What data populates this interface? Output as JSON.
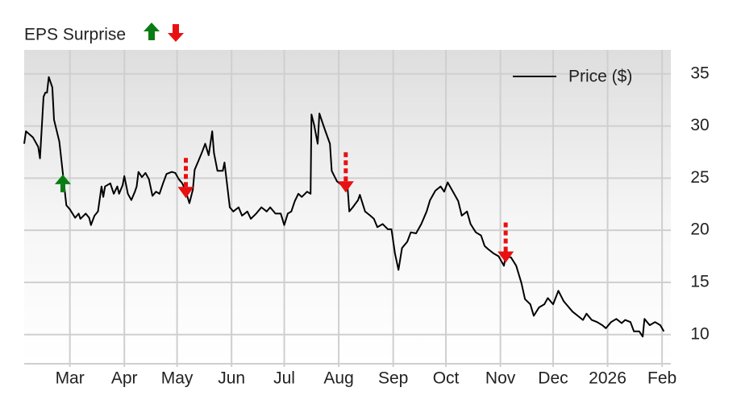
{
  "chart_data": {
    "type": "line",
    "title": "EPS Surprise",
    "x": [
      0,
      1,
      5,
      8,
      9,
      11,
      12,
      13,
      14,
      16,
      17,
      20,
      22,
      24,
      26,
      29,
      31,
      32,
      35,
      37,
      38,
      40,
      42,
      44,
      45,
      46,
      49,
      51,
      53,
      54,
      56,
      57,
      59,
      61,
      63,
      64,
      65,
      67,
      69,
      71,
      73,
      75,
      77,
      79,
      81,
      84,
      86,
      88,
      90,
      92,
      94,
      96,
      97,
      99,
      101,
      103,
      105,
      107,
      108,
      110,
      113,
      114,
      117,
      119,
      122,
      124,
      127,
      129,
      132,
      135,
      138,
      140,
      143,
      146,
      148,
      150,
      152,
      154,
      156,
      158,
      161,
      163,
      163.5,
      165,
      167,
      168,
      171,
      174,
      175,
      178,
      181,
      184,
      185,
      187,
      190,
      191,
      194,
      197,
      199,
      201,
      204,
      207,
      209,
      211,
      213,
      215,
      218,
      220,
      223,
      226,
      229,
      231,
      234,
      237,
      239,
      241,
      244,
      247,
      249,
      252,
      254,
      257,
      260,
      262,
      264,
      267,
      270,
      273,
      274,
      277,
      280,
      283,
      285,
      288,
      290,
      293,
      296,
      298,
      301,
      304,
      307,
      309,
      312,
      315,
      318,
      320,
      323,
      326,
      329,
      331,
      334,
      337,
      340,
      342,
      345,
      347,
      350,
      352,
      353,
      356,
      359,
      362,
      364
    ],
    "series": [
      {
        "name": "Price ($)",
        "color": "#000000",
        "values": [
          28.3,
          29.5,
          28.9,
          28.0,
          26.9,
          32.8,
          33.2,
          33.2,
          34.7,
          33.7,
          30.6,
          28.5,
          25.5,
          22.4,
          22.0,
          21.2,
          21.6,
          21.1,
          21.6,
          21.2,
          20.5,
          21.4,
          21.8,
          24.2,
          23.2,
          24.2,
          24.5,
          23.5,
          24.2,
          23.5,
          24.3,
          25.2,
          23.5,
          22.9,
          23.7,
          24.2,
          25.6,
          25.1,
          25.5,
          24.9,
          23.3,
          23.7,
          23.5,
          24.5,
          25.4,
          25.6,
          25.5,
          24.9,
          24.5,
          23.7,
          22.6,
          23.9,
          25.8,
          26.6,
          27.4,
          28.3,
          27.2,
          29.5,
          27.4,
          25.7,
          25.7,
          26.5,
          22.2,
          21.8,
          22.2,
          21.4,
          21.8,
          21.1,
          21.6,
          22.2,
          21.8,
          22.2,
          21.6,
          21.6,
          20.5,
          21.6,
          21.8,
          22.8,
          23.5,
          23.2,
          23.7,
          23.5,
          31.1,
          30.1,
          28.3,
          31.2,
          29.7,
          28.3,
          25.7,
          24.7,
          24.3,
          24.2,
          21.8,
          22.2,
          22.9,
          23.4,
          21.8,
          21.4,
          21.1,
          20.3,
          20.6,
          20.1,
          20.1,
          17.8,
          16.2,
          18.3,
          18.9,
          19.8,
          19.7,
          20.6,
          21.8,
          22.9,
          23.8,
          24.2,
          23.7,
          24.6,
          23.7,
          22.8,
          21.4,
          21.8,
          20.6,
          19.8,
          19.5,
          18.5,
          18.2,
          17.8,
          17.5,
          16.6,
          17.5,
          17.4,
          16.6,
          14.9,
          13.4,
          12.9,
          11.8,
          12.6,
          12.9,
          13.5,
          12.9,
          14.2,
          13.2,
          12.8,
          12.2,
          11.8,
          11.4,
          12.0,
          11.4,
          11.2,
          10.9,
          10.6,
          11.2,
          11.5,
          11.1,
          11.4,
          11.2,
          10.3,
          10.3,
          9.8,
          11.5,
          10.9,
          11.2,
          10.9,
          10.3
        ]
      }
    ],
    "xlim": [
      0,
      368
    ],
    "xticks": [
      {
        "value": 26,
        "label": "Mar"
      },
      {
        "value": 57,
        "label": "Apr"
      },
      {
        "value": 87,
        "label": "May"
      },
      {
        "value": 118,
        "label": "Jun"
      },
      {
        "value": 148,
        "label": "Jul"
      },
      {
        "value": 179,
        "label": "Aug"
      },
      {
        "value": 210,
        "label": "Sep"
      },
      {
        "value": 240,
        "label": "Oct"
      },
      {
        "value": 271,
        "label": "Nov"
      },
      {
        "value": 301,
        "label": "Dec"
      },
      {
        "value": 332,
        "label": "2026"
      },
      {
        "value": 363,
        "label": "Feb"
      }
    ],
    "ylim": [
      7.2,
      37.3
    ],
    "yticks": [
      10,
      15,
      20,
      25,
      30,
      35
    ],
    "grid": true,
    "legend": "upper right",
    "eps_surprises": [
      {
        "x": 22,
        "direction": "up",
        "color": "#0a7d12"
      },
      {
        "x": 92,
        "direction": "down",
        "color": "#e81010"
      },
      {
        "x": 183,
        "direction": "down",
        "color": "#e81010"
      },
      {
        "x": 274,
        "direction": "down",
        "color": "#e81010"
      }
    ]
  }
}
